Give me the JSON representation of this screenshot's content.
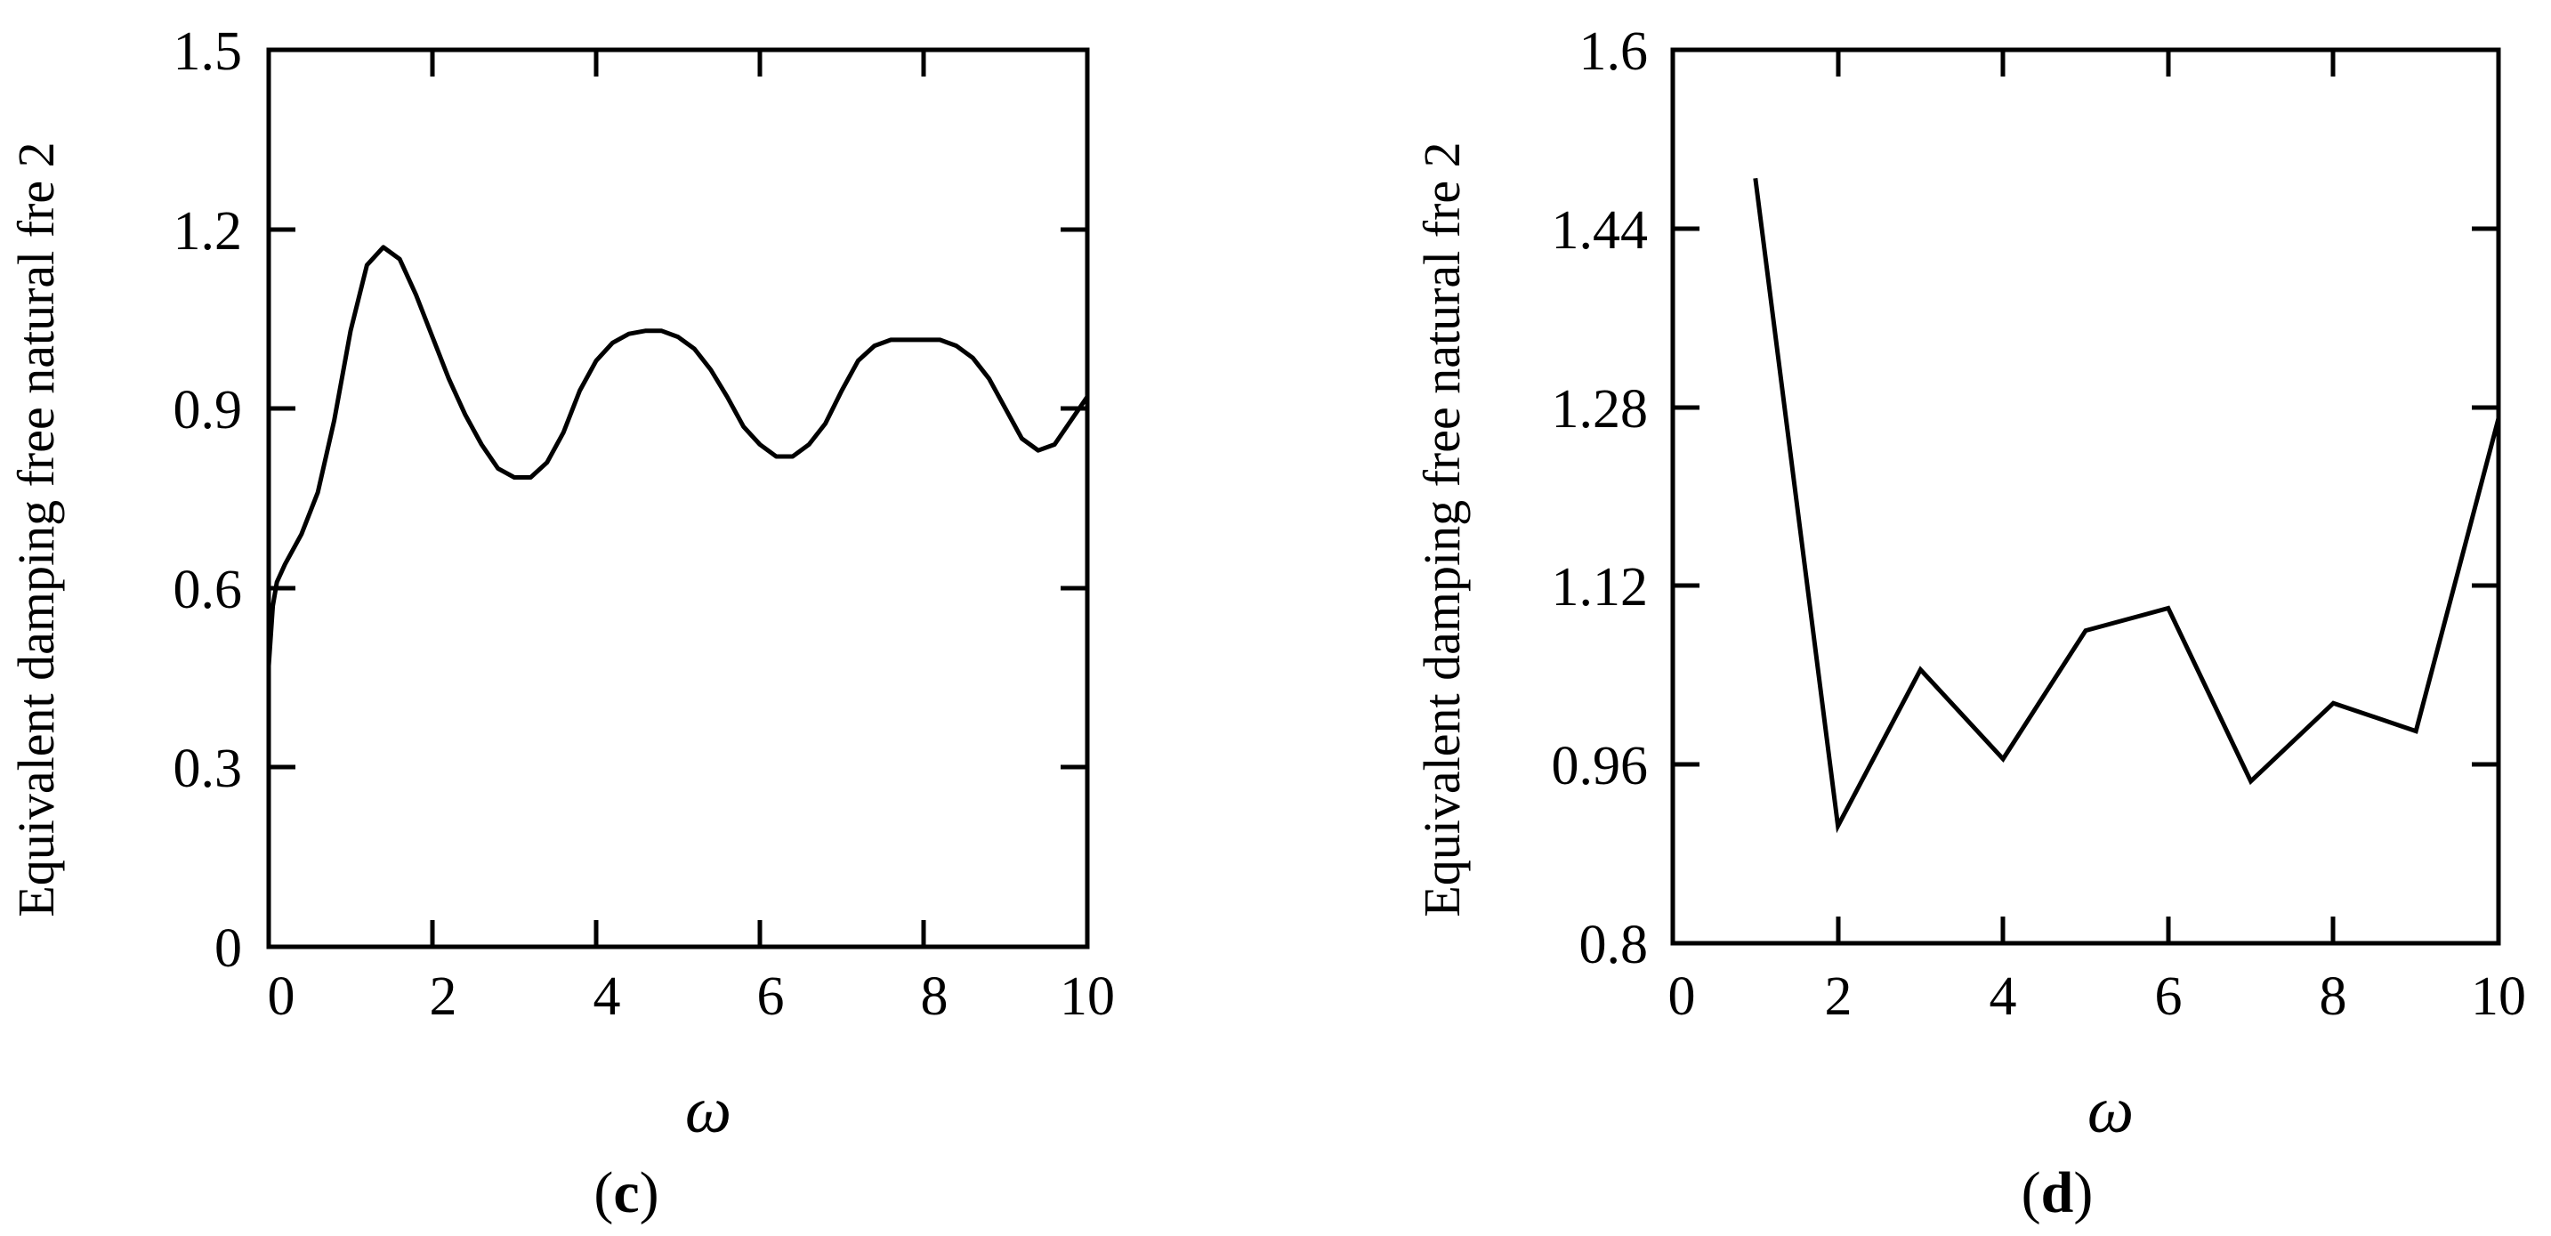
{
  "chart_data": [
    {
      "type": "line",
      "panel_label": "c",
      "xlabel": "ω",
      "ylabel": "Equivalent damping free natural fre 2",
      "xlim": [
        0,
        10
      ],
      "ylim": [
        0,
        1.5
      ],
      "xticks": [
        "0",
        "2",
        "4",
        "6",
        "8",
        "10"
      ],
      "yticks": [
        "0",
        "0.3",
        "0.6",
        "0.9",
        "1.2",
        "1.5"
      ],
      "grid": false,
      "series": [
        {
          "values": [
            {
              "x": 0.0,
              "y": 0.47
            },
            {
              "x": 0.05,
              "y": 0.57
            },
            {
              "x": 0.1,
              "y": 0.61
            },
            {
              "x": 0.2,
              "y": 0.64
            },
            {
              "x": 0.4,
              "y": 0.69
            },
            {
              "x": 0.6,
              "y": 0.76
            },
            {
              "x": 0.8,
              "y": 0.88
            },
            {
              "x": 1.0,
              "y": 1.03
            },
            {
              "x": 1.2,
              "y": 1.14
            },
            {
              "x": 1.4,
              "y": 1.17
            },
            {
              "x": 1.6,
              "y": 1.15
            },
            {
              "x": 1.8,
              "y": 1.09
            },
            {
              "x": 2.0,
              "y": 1.02
            },
            {
              "x": 2.2,
              "y": 0.95
            },
            {
              "x": 2.4,
              "y": 0.89
            },
            {
              "x": 2.6,
              "y": 0.84
            },
            {
              "x": 2.8,
              "y": 0.8
            },
            {
              "x": 3.0,
              "y": 0.785
            },
            {
              "x": 3.2,
              "y": 0.785
            },
            {
              "x": 3.4,
              "y": 0.81
            },
            {
              "x": 3.6,
              "y": 0.86
            },
            {
              "x": 3.8,
              "y": 0.93
            },
            {
              "x": 4.0,
              "y": 0.98
            },
            {
              "x": 4.2,
              "y": 1.01
            },
            {
              "x": 4.4,
              "y": 1.025
            },
            {
              "x": 4.6,
              "y": 1.03
            },
            {
              "x": 4.8,
              "y": 1.03
            },
            {
              "x": 5.0,
              "y": 1.02
            },
            {
              "x": 5.2,
              "y": 1.0
            },
            {
              "x": 5.4,
              "y": 0.965
            },
            {
              "x": 5.6,
              "y": 0.92
            },
            {
              "x": 5.8,
              "y": 0.87
            },
            {
              "x": 6.0,
              "y": 0.84
            },
            {
              "x": 6.2,
              "y": 0.82
            },
            {
              "x": 6.4,
              "y": 0.82
            },
            {
              "x": 6.6,
              "y": 0.84
            },
            {
              "x": 6.8,
              "y": 0.875
            },
            {
              "x": 7.0,
              "y": 0.93
            },
            {
              "x": 7.2,
              "y": 0.98
            },
            {
              "x": 7.4,
              "y": 1.005
            },
            {
              "x": 7.6,
              "y": 1.015
            },
            {
              "x": 7.8,
              "y": 1.015
            },
            {
              "x": 8.0,
              "y": 1.015
            },
            {
              "x": 8.2,
              "y": 1.015
            },
            {
              "x": 8.4,
              "y": 1.005
            },
            {
              "x": 8.6,
              "y": 0.985
            },
            {
              "x": 8.8,
              "y": 0.95
            },
            {
              "x": 9.0,
              "y": 0.9
            },
            {
              "x": 9.2,
              "y": 0.85
            },
            {
              "x": 9.4,
              "y": 0.83
            },
            {
              "x": 9.6,
              "y": 0.84
            },
            {
              "x": 9.8,
              "y": 0.88
            },
            {
              "x": 10.0,
              "y": 0.92
            }
          ]
        }
      ]
    },
    {
      "type": "line",
      "panel_label": "d",
      "xlabel": "ω",
      "ylabel": "Equivalent damping free natural fre 2",
      "xlim": [
        0,
        10
      ],
      "ylim": [
        0.8,
        1.6
      ],
      "xticks": [
        "0",
        "2",
        "4",
        "6",
        "8",
        "10"
      ],
      "yticks": [
        "0.8",
        "0.96",
        "1.12",
        "1.28",
        "1.44",
        "1.6"
      ],
      "grid": false,
      "series": [
        {
          "values": [
            {
              "x": 1,
              "y": 1.485
            },
            {
              "x": 2,
              "y": 0.905
            },
            {
              "x": 3,
              "y": 1.045
            },
            {
              "x": 4,
              "y": 0.965
            },
            {
              "x": 5,
              "y": 1.08
            },
            {
              "x": 6,
              "y": 1.1
            },
            {
              "x": 7,
              "y": 0.945
            },
            {
              "x": 8,
              "y": 1.015
            },
            {
              "x": 9,
              "y": 0.99
            },
            {
              "x": 10,
              "y": 1.27
            }
          ]
        }
      ]
    }
  ]
}
